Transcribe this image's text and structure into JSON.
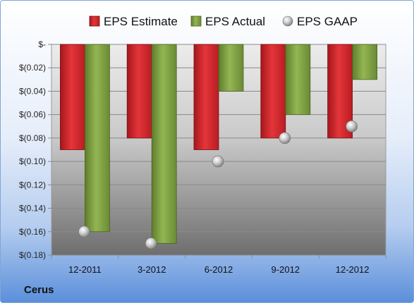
{
  "company": "Cerus",
  "chart_data": {
    "type": "bar",
    "title": "",
    "xlabel": "",
    "ylabel": "",
    "categories": [
      "12-2011",
      "3-2012",
      "6-2012",
      "9-2012",
      "12-2012"
    ],
    "series": [
      {
        "name": "EPS Estimate",
        "kind": "bar",
        "color": "#e0262b",
        "values": [
          -0.09,
          -0.08,
          -0.09,
          -0.08,
          -0.08
        ]
      },
      {
        "name": "EPS Actual",
        "kind": "bar",
        "color": "#8cb04a",
        "values": [
          -0.16,
          -0.17,
          -0.04,
          -0.06,
          -0.03
        ]
      },
      {
        "name": "EPS GAAP",
        "kind": "marker",
        "color": "#bfbfbf",
        "values": [
          -0.16,
          -0.17,
          -0.1,
          -0.08,
          -0.07
        ]
      }
    ],
    "ylim": [
      -0.18,
      0
    ],
    "yticks": [
      0,
      -0.02,
      -0.04,
      -0.06,
      -0.08,
      -0.1,
      -0.12,
      -0.14,
      -0.16,
      -0.18
    ],
    "ytick_labels": [
      "$-",
      "$(0.02)",
      "$(0.04)",
      "$(0.06)",
      "$(0.08)",
      "$(0.10)",
      "$(0.12)",
      "$(0.14)",
      "$(0.16)",
      "$(0.18)"
    ],
    "grid": true,
    "legend_position": "top"
  }
}
